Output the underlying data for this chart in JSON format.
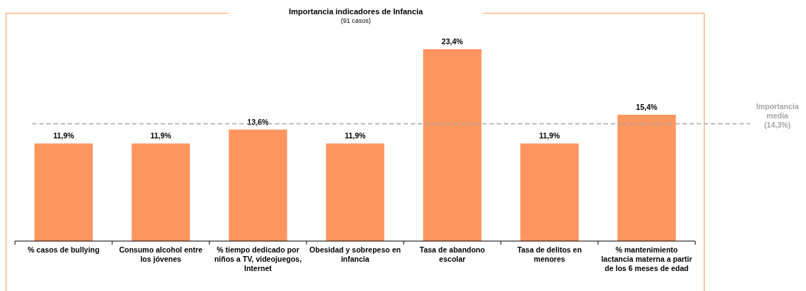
{
  "chart_data": {
    "type": "bar",
    "title": "Importancia indicadores de Infancia",
    "subtitle": "(91 casos)",
    "categories": [
      "% casos de bullying",
      "Consumo alcohol entre los jóvenes",
      "% tiempo dedicado por niños a TV, videojuegos, Internet",
      "Obesidad y sobrepeso en infancia",
      "Tasa de abandono escolar",
      "Tasa de delitos en menores",
      "% mantenimiento lactancia materna a partir de los 6 meses de edad"
    ],
    "values": [
      11.9,
      11.9,
      13.6,
      11.9,
      23.4,
      11.9,
      15.4
    ],
    "value_labels": [
      "11,9%",
      "11,9%",
      "13,6%",
      "11,9%",
      "23,4%",
      "11,9%",
      "15,4%"
    ],
    "color": "#ff9660",
    "ref_lines": [
      {
        "axis": "y",
        "value": 14.3,
        "label": "Importancia media (14,3%)",
        "color": "#a6a6a6",
        "line_style": "dashed"
      }
    ]
  }
}
